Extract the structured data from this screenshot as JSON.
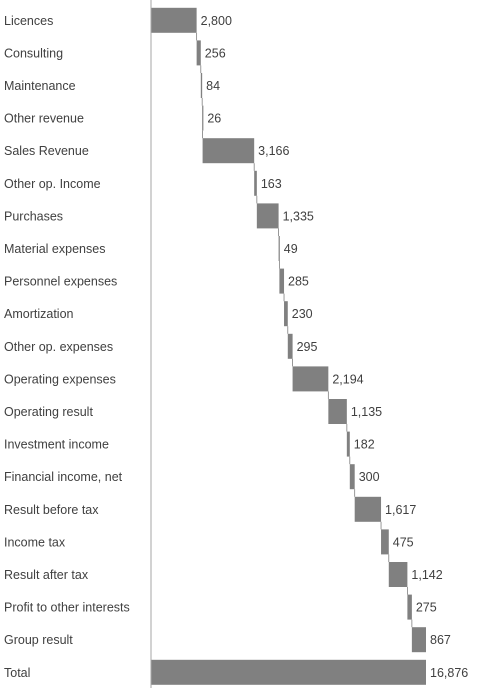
{
  "chart_data": {
    "type": "bar",
    "subtype": "waterfall-horizontal",
    "title": "",
    "xlabel": "",
    "ylabel": "",
    "grid": false,
    "bar_color": "#808080",
    "axis_color": "#a6a6a6",
    "connector_color": "#7f7f7f",
    "text_color": "#404040",
    "categories": [
      "Licences",
      "Consulting",
      "Maintenance",
      "Other revenue",
      "Sales Revenue",
      "Other op. Income",
      "Purchases",
      "Material expenses",
      "Personnel expenses",
      "Amortization",
      "Other op. expenses",
      "Operating expenses",
      "Operating result",
      "Investment income",
      "Financial income, net",
      "Result before tax",
      "Income tax",
      "Result after tax",
      "Profit to other interests",
      "Group result",
      "Total"
    ],
    "values": [
      2800,
      256,
      84,
      26,
      3166,
      163,
      1335,
      49,
      285,
      230,
      295,
      2194,
      1135,
      182,
      300,
      1617,
      475,
      1142,
      275,
      867,
      16876
    ],
    "value_labels": [
      "2,800",
      "256",
      "84",
      "26",
      "3,166",
      "163",
      "1,335",
      "49",
      "285",
      "230",
      "295",
      "2,194",
      "1,135",
      "182",
      "300",
      "1,617",
      "475",
      "1,142",
      "275",
      "867",
      "16,876"
    ],
    "total_index": 20
  }
}
